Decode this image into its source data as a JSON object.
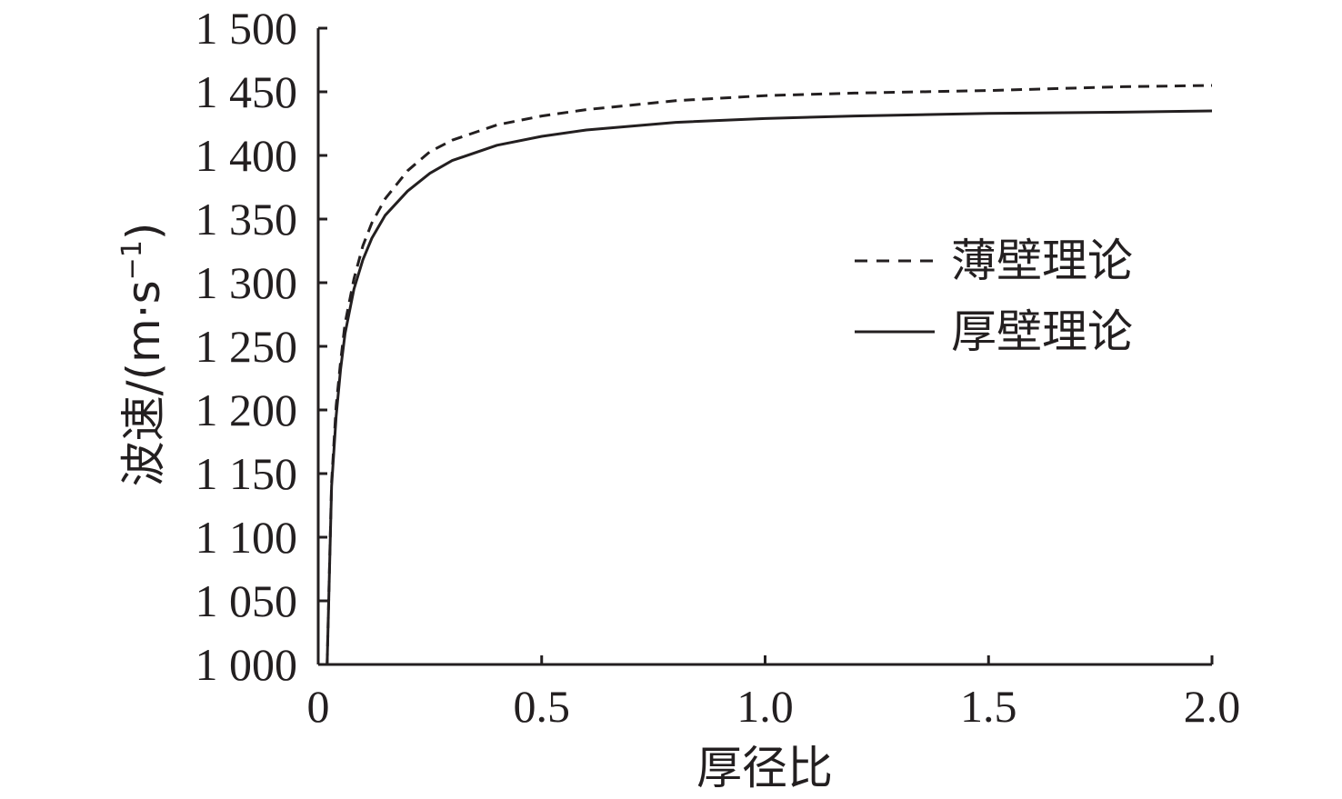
{
  "chart_data": {
    "type": "line",
    "xlabel": "厚径比",
    "ylabel_main": "波速/(m·s",
    "ylabel_exp": "−1",
    "ylabel_close": ")",
    "xlim": [
      0,
      2.0
    ],
    "ylim": [
      1000,
      1500
    ],
    "x_ticks": [
      0,
      0.5,
      1.0,
      1.5,
      2.0
    ],
    "x_tick_labels": [
      "0",
      "0.5",
      "1.0",
      "1.5",
      "2.0"
    ],
    "y_ticks": [
      1000,
      1050,
      1100,
      1150,
      1200,
      1250,
      1300,
      1350,
      1400,
      1450,
      1500
    ],
    "y_tick_labels": [
      "1 000",
      "1 050",
      "1 100",
      "1 150",
      "1 200",
      "1 250",
      "1 300",
      "1 350",
      "1 400",
      "1 450",
      "1 500"
    ],
    "grid": false,
    "legend_position": "right",
    "series": [
      {
        "name": "薄壁理论",
        "style": "dashed",
        "color": "#231f20",
        "x": [
          0.02,
          0.03,
          0.04,
          0.05,
          0.06,
          0.08,
          0.1,
          0.12,
          0.15,
          0.2,
          0.25,
          0.3,
          0.4,
          0.5,
          0.6,
          0.8,
          1.0,
          1.2,
          1.5,
          1.8,
          2.0
        ],
        "y": [
          1000,
          1143,
          1203,
          1238,
          1268,
          1303,
          1329,
          1347,
          1366,
          1388,
          1403,
          1412,
          1424,
          1431,
          1436,
          1443,
          1447,
          1449,
          1451,
          1454,
          1455
        ]
      },
      {
        "name": "厚壁理论",
        "style": "solid",
        "color": "#231f20",
        "x": [
          0.02,
          0.03,
          0.04,
          0.05,
          0.06,
          0.08,
          0.1,
          0.12,
          0.15,
          0.2,
          0.25,
          0.3,
          0.4,
          0.5,
          0.6,
          0.8,
          1.0,
          1.2,
          1.5,
          1.8,
          2.0
        ],
        "y": [
          1000,
          1140,
          1195,
          1232,
          1260,
          1295,
          1318,
          1335,
          1353,
          1372,
          1386,
          1396,
          1408,
          1415,
          1420,
          1426,
          1429,
          1431,
          1433,
          1434,
          1435
        ]
      }
    ]
  }
}
